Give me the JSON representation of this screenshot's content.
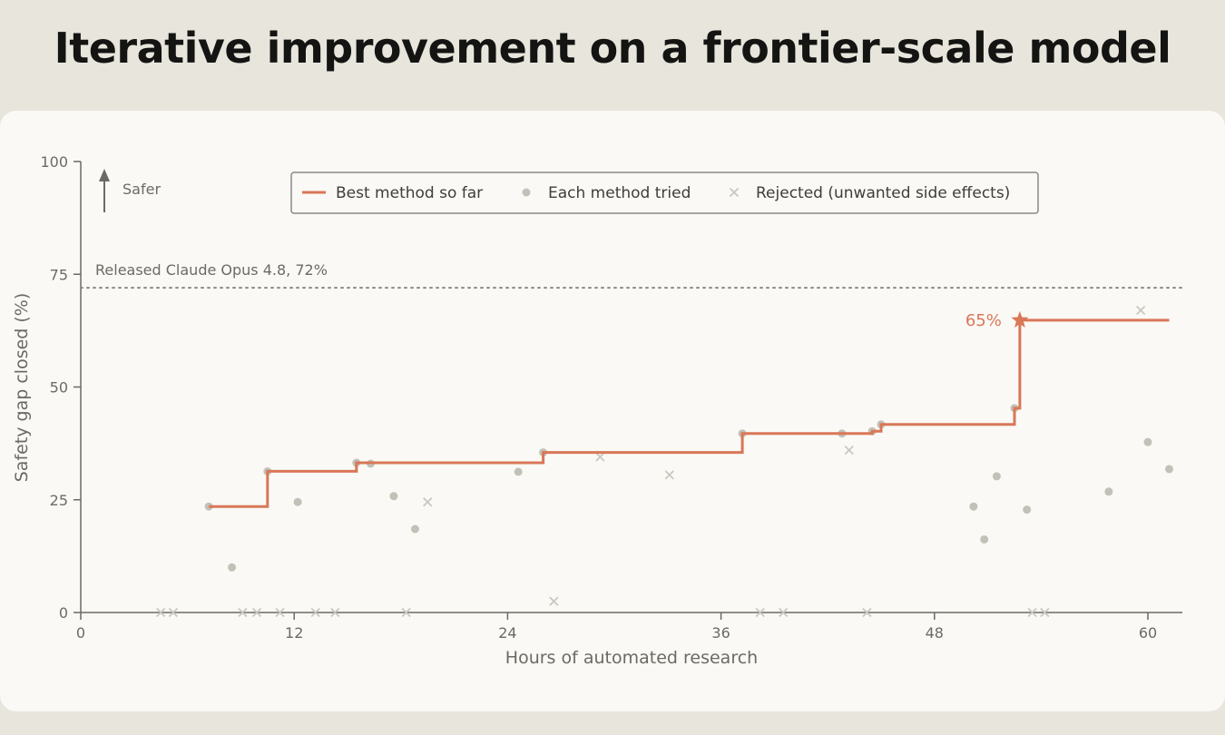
{
  "page_title": "Iterative improvement on a frontier-scale model",
  "colors": {
    "accent": "#d97757",
    "point": "#c2c1b8",
    "rejected": "#c9c8bf",
    "axis": "#6b6a64",
    "text": "#3d3d3a"
  },
  "chart_data": {
    "type": "line",
    "title": "",
    "xlabel": "Hours of automated research",
    "ylabel": "Safety gap closed (%)",
    "xlim": [
      0,
      62
    ],
    "ylim": [
      0,
      100
    ],
    "x_ticks": [
      0,
      12,
      24,
      36,
      48,
      60
    ],
    "y_ticks": [
      0,
      25,
      50,
      75,
      100
    ],
    "grid": false,
    "legend_position": "top",
    "direction_label": "Safer",
    "reference_line": {
      "y": 72,
      "label": "Released Claude Opus 4.8, 72%"
    },
    "final_value_label": "65%",
    "series": [
      {
        "name": "Best method so far",
        "kind": "step",
        "points": [
          [
            7.2,
            23.5
          ],
          [
            10.5,
            23.5
          ],
          [
            10.5,
            31.3
          ],
          [
            15.5,
            31.3
          ],
          [
            15.5,
            33.2
          ],
          [
            26,
            33.2
          ],
          [
            26,
            35.5
          ],
          [
            37.2,
            35.5
          ],
          [
            37.2,
            39.7
          ],
          [
            44.5,
            39.7
          ],
          [
            44.5,
            40.2
          ],
          [
            45,
            40.2
          ],
          [
            45,
            41.7
          ],
          [
            52.5,
            41.7
          ],
          [
            52.5,
            45.3
          ],
          [
            52.5,
            45.3
          ],
          [
            52.8,
            45.3
          ],
          [
            52.8,
            64.8
          ],
          [
            61.2,
            64.8
          ]
        ]
      },
      {
        "name": "Each method tried",
        "kind": "scatter",
        "points": [
          [
            7.2,
            23.5
          ],
          [
            8.5,
            10
          ],
          [
            10.5,
            31.3
          ],
          [
            12.2,
            24.5
          ],
          [
            15.5,
            33.2
          ],
          [
            16.3,
            33
          ],
          [
            17.6,
            25.8
          ],
          [
            18.8,
            18.5
          ],
          [
            24.6,
            31.2
          ],
          [
            26,
            35.5
          ],
          [
            37.2,
            39.7
          ],
          [
            42.8,
            39.7
          ],
          [
            44.5,
            40.2
          ],
          [
            45,
            41.7
          ],
          [
            50.2,
            23.5
          ],
          [
            50.8,
            16.2
          ],
          [
            51.5,
            30.2
          ],
          [
            52.5,
            45.3
          ],
          [
            53.2,
            22.8
          ],
          [
            57.8,
            26.8
          ],
          [
            60,
            37.8
          ],
          [
            61.2,
            31.8
          ]
        ]
      },
      {
        "name": "Rejected (unwanted side effects)",
        "kind": "x-marker",
        "points": [
          [
            4.5,
            0
          ],
          [
            5.2,
            0
          ],
          [
            9.1,
            0
          ],
          [
            9.9,
            0
          ],
          [
            11.2,
            0
          ],
          [
            13.2,
            0
          ],
          [
            14.3,
            0
          ],
          [
            18.3,
            0
          ],
          [
            19.5,
            24.5
          ],
          [
            26.6,
            2.5
          ],
          [
            29.2,
            34.5
          ],
          [
            33.1,
            30.5
          ],
          [
            38.2,
            0
          ],
          [
            39.5,
            0
          ],
          [
            43.2,
            36
          ],
          [
            44.2,
            0
          ],
          [
            53.5,
            0
          ],
          [
            54.2,
            0
          ],
          [
            59.6,
            67
          ]
        ]
      }
    ],
    "final_point": [
      52.8,
      64.8
    ]
  }
}
